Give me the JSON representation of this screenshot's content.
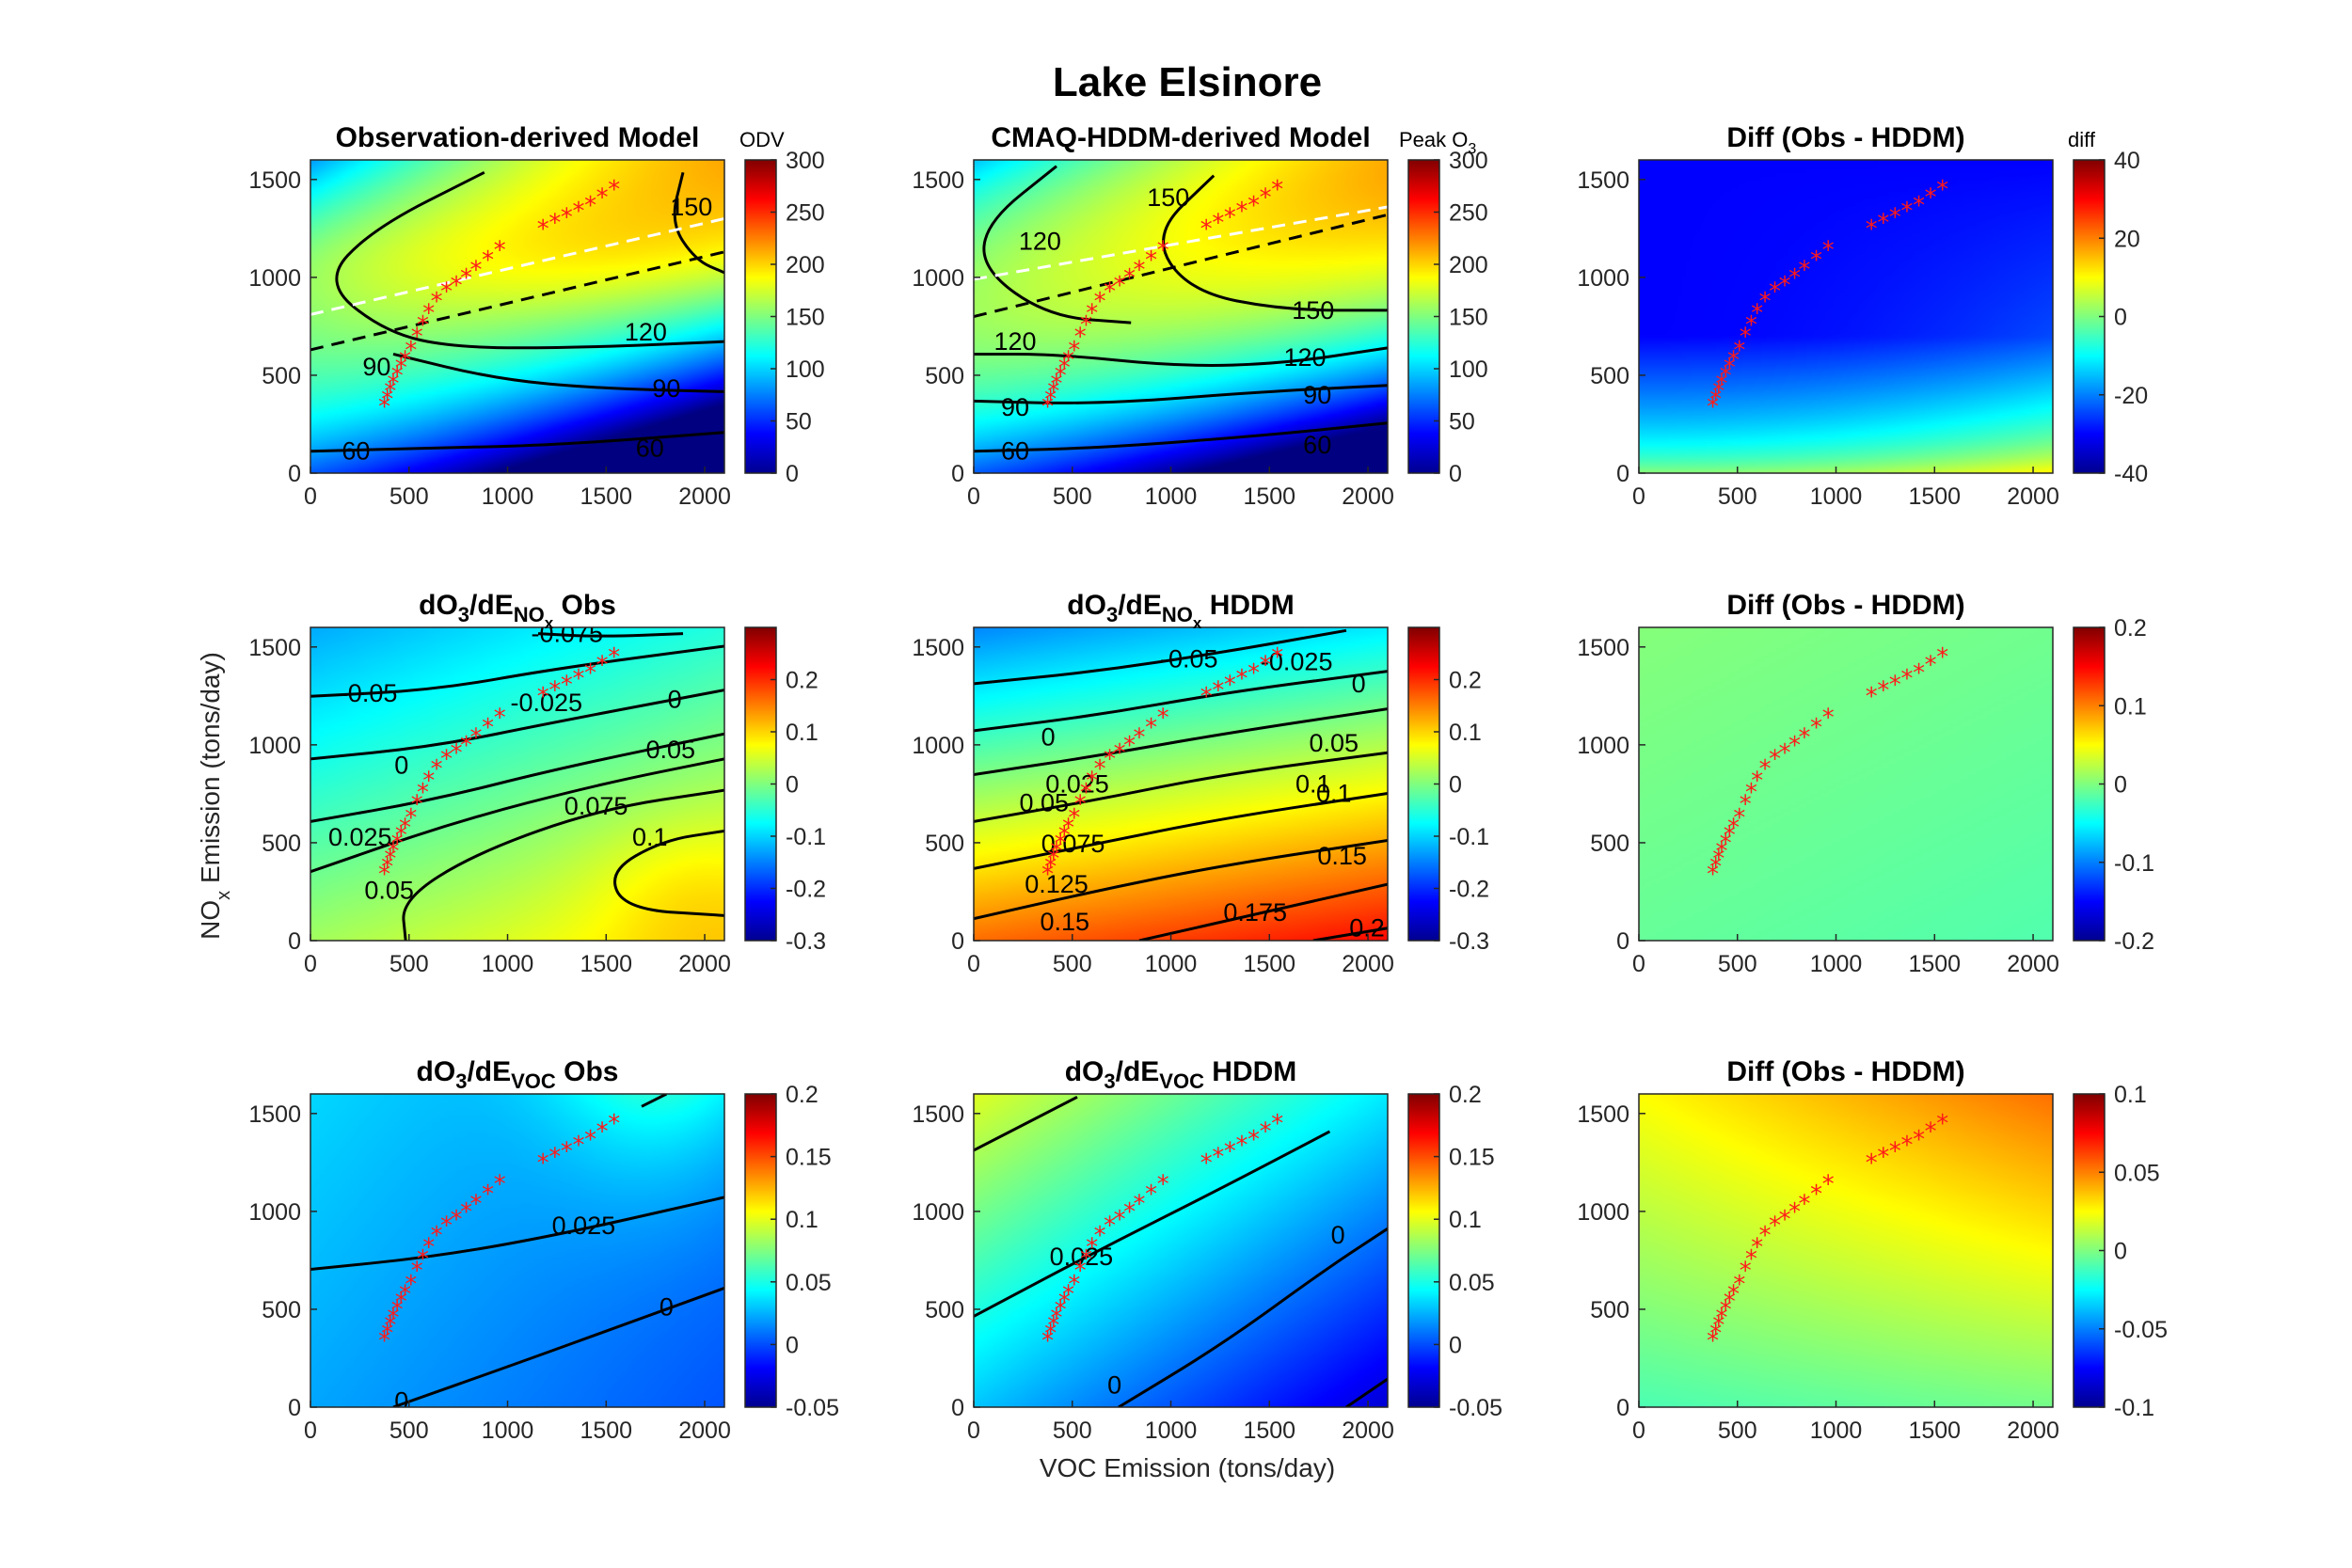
{
  "figure": {
    "title": "Lake Elsinore"
  },
  "axes_labels": {
    "ylabel_main": "NO",
    "ylabel_sub": "x",
    "ylabel_rest": " Emission (tons/day)",
    "xlabel": "VOC Emission (tons/day)"
  },
  "colors": {
    "marker": "#ff1a1a",
    "contour": "#000000",
    "colormap": "jet"
  },
  "chart_data": [
    {
      "type": "heatmap",
      "title": "Observation-derived Model",
      "xlim": [
        0,
        2100
      ],
      "ylim": [
        0,
        1600
      ],
      "xticks": [
        "0",
        "500",
        "1000",
        "1500",
        "2000"
      ],
      "yticks": [
        "0",
        "500",
        "1000",
        "1500"
      ],
      "colorbar": {
        "title": "ODV",
        "title_sub": "",
        "min": 0,
        "max": 300,
        "ticks": [
          "0",
          "50",
          "100",
          "150",
          "200",
          "250",
          "300"
        ]
      },
      "contour_labels": [
        "60",
        "60",
        "90",
        "90",
        "120",
        "150"
      ],
      "ridge_lines": [
        {
          "color": "#ffffff",
          "style": "dashed",
          "from": [
            0,
            810
          ],
          "to": [
            2100,
            1300
          ]
        },
        {
          "color": "#000000",
          "style": "dashed",
          "from": [
            0,
            630
          ],
          "to": [
            2100,
            1130
          ]
        }
      ]
    },
    {
      "type": "heatmap",
      "title": "CMAQ-HDDM-derived Model",
      "xlim": [
        0,
        2100
      ],
      "ylim": [
        0,
        1600
      ],
      "xticks": [
        "0",
        "500",
        "1000",
        "1500",
        "2000"
      ],
      "yticks": [
        "0",
        "500",
        "1000",
        "1500"
      ],
      "colorbar": {
        "title": "Peak O",
        "title_sub": "3",
        "min": 0,
        "max": 300,
        "ticks": [
          "0",
          "50",
          "100",
          "150",
          "200",
          "250",
          "300"
        ]
      },
      "contour_labels": [
        "60",
        "60",
        "90",
        "90",
        "120",
        "120",
        "120",
        "150",
        "150"
      ],
      "ridge_lines": [
        {
          "color": "#ffffff",
          "style": "dashed",
          "from": [
            0,
            990
          ],
          "to": [
            2100,
            1360
          ]
        },
        {
          "color": "#000000",
          "style": "dashed",
          "from": [
            0,
            800
          ],
          "to": [
            2100,
            1320
          ]
        }
      ]
    },
    {
      "type": "heatmap",
      "title": "Diff (Obs - HDDM)",
      "xlim": [
        0,
        2100
      ],
      "ylim": [
        0,
        1600
      ],
      "xticks": [
        "0",
        "500",
        "1000",
        "1500",
        "2000"
      ],
      "yticks": [
        "0",
        "500",
        "1000",
        "1500"
      ],
      "colorbar": {
        "title": "diff",
        "title_sub": "",
        "min": -40,
        "max": 40,
        "ticks": [
          "-40",
          "-20",
          "0",
          "20",
          "40"
        ]
      },
      "contour_labels": []
    },
    {
      "type": "heatmap",
      "title": "dO",
      "title_parts": [
        "dO",
        "3",
        "/dE",
        "NO",
        "x",
        " Obs"
      ],
      "xlim": [
        0,
        2100
      ],
      "ylim": [
        0,
        1600
      ],
      "xticks": [
        "0",
        "500",
        "1000",
        "1500",
        "2000"
      ],
      "yticks": [
        "0",
        "500",
        "1000",
        "1500"
      ],
      "colorbar": {
        "title": "",
        "title_sub": "",
        "min": -0.3,
        "max": 0.3,
        "ticks": [
          "-0.3",
          "-0.2",
          "-0.1",
          "0",
          "0.1",
          "0.2"
        ]
      },
      "contour_labels": [
        "-0.075",
        "-0.05",
        "-0.025",
        "0",
        "0",
        "0.025",
        "0.05",
        "0.05",
        "0.075",
        "0.1"
      ]
    },
    {
      "type": "heatmap",
      "title": "dO",
      "title_parts": [
        "dO",
        "3",
        "/dE",
        "NO",
        "x",
        " HDDM"
      ],
      "xlim": [
        0,
        2100
      ],
      "ylim": [
        0,
        1600
      ],
      "xticks": [
        "0",
        "500",
        "1000",
        "1500",
        "2000"
      ],
      "yticks": [
        "0",
        "500",
        "1000",
        "1500"
      ],
      "colorbar": {
        "title": "",
        "title_sub": "",
        "min": -0.3,
        "max": 0.3,
        "ticks": [
          "-0.3",
          "-0.2",
          "-0.1",
          "0",
          "0.1",
          "0.2"
        ]
      },
      "contour_labels": [
        "-0.05",
        "-0.025",
        "0",
        "0",
        "0.025",
        "0.05",
        "0.05",
        "0.075",
        "0.1",
        "0.1",
        "0.125",
        "0.15",
        "0.15",
        "0.175",
        "0.2"
      ]
    },
    {
      "type": "heatmap",
      "title": "Diff (Obs - HDDM)",
      "xlim": [
        0,
        2100
      ],
      "ylim": [
        0,
        1600
      ],
      "xticks": [
        "0",
        "500",
        "1000",
        "1500",
        "2000"
      ],
      "yticks": [
        "0",
        "500",
        "1000",
        "1500"
      ],
      "colorbar": {
        "title": "",
        "title_sub": "",
        "min": -0.2,
        "max": 0.2,
        "ticks": [
          "-0.2",
          "-0.1",
          "0",
          "0.1",
          "0.2"
        ]
      },
      "contour_labels": []
    },
    {
      "type": "heatmap",
      "title": "dO",
      "title_parts": [
        "dO",
        "3",
        "/dE",
        "VOC",
        "",
        " Obs"
      ],
      "xlim": [
        0,
        2100
      ],
      "ylim": [
        0,
        1600
      ],
      "xticks": [
        "0",
        "500",
        "1000",
        "1500",
        "2000"
      ],
      "yticks": [
        "0",
        "500",
        "1000",
        "1500"
      ],
      "colorbar": {
        "title": "",
        "title_sub": "",
        "min": -0.05,
        "max": 0.2,
        "ticks": [
          "-0.05",
          "0",
          "0.05",
          "0.1",
          "0.15",
          "0.2"
        ]
      },
      "contour_labels": [
        "0.025",
        "0",
        "0"
      ]
    },
    {
      "type": "heatmap",
      "title": "dO",
      "title_parts": [
        "dO",
        "3",
        "/dE",
        "VOC",
        "",
        " HDDM"
      ],
      "xlim": [
        0,
        2100
      ],
      "ylim": [
        0,
        1600
      ],
      "xticks": [
        "0",
        "500",
        "1000",
        "1500",
        "2000"
      ],
      "yticks": [
        "0",
        "500",
        "1000",
        "1500"
      ],
      "colorbar": {
        "title": "",
        "title_sub": "",
        "min": -0.05,
        "max": 0.2,
        "ticks": [
          "-0.05",
          "0",
          "0.05",
          "0.1",
          "0.15",
          "0.2"
        ]
      },
      "contour_labels": [
        "0.025",
        "0",
        "0"
      ]
    },
    {
      "type": "heatmap",
      "title": "Diff (Obs - HDDM)",
      "xlim": [
        0,
        2100
      ],
      "ylim": [
        0,
        1600
      ],
      "xticks": [
        "0",
        "500",
        "1000",
        "1500",
        "2000"
      ],
      "yticks": [
        "0",
        "500",
        "1000",
        "1500"
      ],
      "colorbar": {
        "title": "",
        "title_sub": "",
        "min": -0.1,
        "max": 0.1,
        "ticks": [
          "-0.1",
          "-0.05",
          "0",
          "0.05",
          "0.1"
        ]
      },
      "contour_labels": []
    }
  ],
  "trajectory": {
    "marker": "*",
    "x": [
      375,
      390,
      405,
      420,
      440,
      460,
      480,
      510,
      540,
      570,
      600,
      640,
      690,
      740,
      790,
      840,
      900,
      960,
      1180,
      1240,
      1300,
      1360,
      1420,
      1480,
      1540
    ],
    "y": [
      340,
      380,
      420,
      460,
      500,
      540,
      580,
      630,
      700,
      760,
      820,
      880,
      930,
      960,
      1000,
      1040,
      1090,
      1140,
      1250,
      1280,
      1310,
      1340,
      1370,
      1410,
      1450
    ]
  }
}
